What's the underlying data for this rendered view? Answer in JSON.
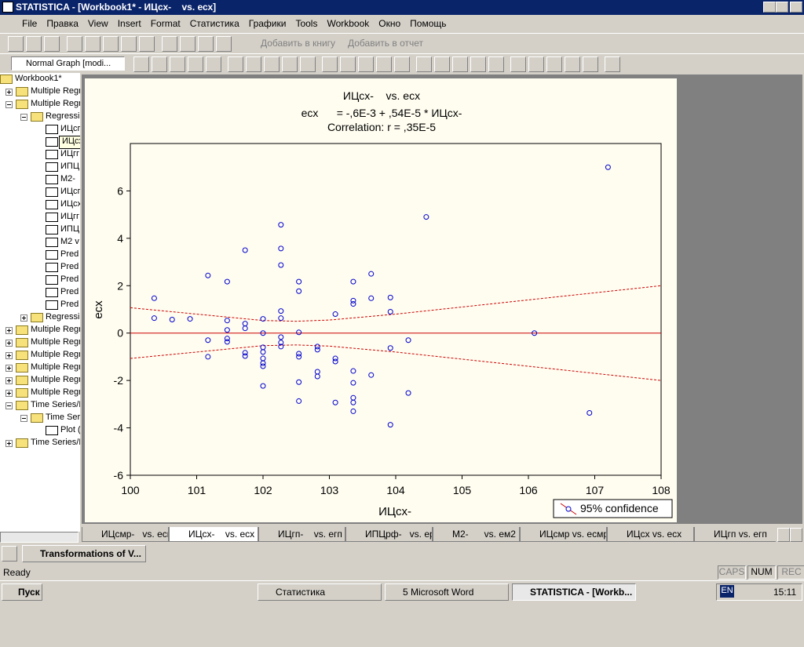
{
  "window": {
    "title": "STATISTICA - [Workbook1* - ИЦсх-    vs. есх]",
    "menu": [
      "File",
      "Правка",
      "View",
      "Insert",
      "Format",
      "Статистика",
      "Графики",
      "Tools",
      "Workbook",
      "Окно",
      "Помощь"
    ],
    "toolbar": {
      "add_to_book": "Добавить в книгу",
      "add_to_report": "Добавить в отчет",
      "graph_style": "Normal Graph [modi..."
    },
    "tree": [
      {
        "label": "Workbook1*",
        "level": 0,
        "icon": "book"
      },
      {
        "label": "Multiple Regr",
        "level": 1,
        "icon": "folder",
        "open": false
      },
      {
        "label": "Multiple Regr",
        "level": 1,
        "icon": "folder",
        "open": true
      },
      {
        "label": "Regressi",
        "level": 2,
        "icon": "folder",
        "open": true
      },
      {
        "label": "ИЦсг",
        "level": 3,
        "icon": "graph"
      },
      {
        "label": "ИЦсх-    vs. есх",
        "level": 3,
        "icon": "graph",
        "tooltip": true
      },
      {
        "label": "ИЦгг",
        "level": 3,
        "icon": "graph"
      },
      {
        "label": "ИПЦ",
        "level": 3,
        "icon": "graph"
      },
      {
        "label": "М2-",
        "level": 3,
        "icon": "graph"
      },
      {
        "label": "ИЦсг",
        "level": 3,
        "icon": "graph"
      },
      {
        "label": "ИЦсх",
        "level": 3,
        "icon": "graph"
      },
      {
        "label": "ИЦгг",
        "level": 3,
        "icon": "graph"
      },
      {
        "label": "ИПЦ",
        "level": 3,
        "icon": "graph"
      },
      {
        "label": "М2 v",
        "level": 3,
        "icon": "graph"
      },
      {
        "label": "Pred",
        "level": 3,
        "icon": "graph"
      },
      {
        "label": "Pred",
        "level": 3,
        "icon": "graph"
      },
      {
        "label": "Pred",
        "level": 3,
        "icon": "graph"
      },
      {
        "label": "Pred",
        "level": 3,
        "icon": "graph"
      },
      {
        "label": "Pred",
        "level": 3,
        "icon": "graph"
      },
      {
        "label": "Regressi",
        "level": 2,
        "icon": "folder",
        "open": false
      },
      {
        "label": "Multiple Regr",
        "level": 1,
        "icon": "folder",
        "open": false
      },
      {
        "label": "Multiple Regr",
        "level": 1,
        "icon": "folder",
        "open": false
      },
      {
        "label": "Multiple Regr",
        "level": 1,
        "icon": "folder",
        "open": false
      },
      {
        "label": "Multiple Regr",
        "level": 1,
        "icon": "folder",
        "open": false
      },
      {
        "label": "Multiple Regr",
        "level": 1,
        "icon": "folder",
        "open": false
      },
      {
        "label": "Multiple Regr",
        "level": 1,
        "icon": "folder",
        "open": false
      },
      {
        "label": "Time Series/F",
        "level": 1,
        "icon": "folder",
        "open": true
      },
      {
        "label": "Time Ser",
        "level": 2,
        "icon": "folder",
        "open": true
      },
      {
        "label": "Plot (",
        "level": 3,
        "icon": "graph"
      },
      {
        "label": "Time Series/F",
        "level": 1,
        "icon": "folder",
        "open": false
      }
    ],
    "tabs": [
      "ИЦсмр-   vs. есмр",
      "ИЦсх-    vs. есх",
      "ИЦгп-    vs. егп",
      "ИПЦрф-   vs. ерф",
      "М2-      vs. ем2",
      "ИЦсмр vs. есмр",
      "ИЦсх vs. есх",
      "ИЦгп vs. егп"
    ],
    "active_tab": 1,
    "minimized_window": "Transformations of V...",
    "status": {
      "text": "Ready",
      "indicators": [
        "CAPS",
        "NUM",
        "REC"
      ]
    },
    "taskbar": {
      "start": "Пуск",
      "tasks": [
        "Статистика",
        "5 Microsoft Word",
        "STATISTICA - [Workb..."
      ],
      "language": "EN",
      "clock": "15:11"
    }
  },
  "chart_data": {
    "type": "scatter",
    "title": "ИЦсх-    vs. есх",
    "subtitle": "есх      = -,6E-3 + ,54E-5 * ИЦсх-",
    "annotation": "Correlation: r = ,35E-5",
    "x_label": "ИЦсх-",
    "y_label": "есх",
    "xlim": [
      100,
      108
    ],
    "xticks": [
      100,
      101,
      102,
      103,
      104,
      105,
      106,
      107,
      108
    ],
    "ylim": [
      -6,
      8
    ],
    "yticks": [
      -6,
      -4,
      -2,
      0,
      2,
      4,
      6
    ],
    "legend": "95% confidence",
    "series": [
      {
        "color": "#0000cc",
        "x": [
          100.36,
          100.36,
          100.63,
          100.9,
          101.17,
          101.17,
          101.17,
          101.46,
          101.46,
          101.46,
          101.46,
          101.46,
          101.73,
          101.73,
          101.73,
          101.73,
          101.73,
          102,
          102,
          102,
          102,
          102,
          102,
          102,
          102,
          102.27,
          102.27,
          102.27,
          102.27,
          102.27,
          102.27,
          102.27,
          102.27,
          102.54,
          102.54,
          102.54,
          102.54,
          102.54,
          102.54,
          102.54,
          102.82,
          102.82,
          102.82,
          102.82,
          103.09,
          103.09,
          103.09,
          103.09,
          103.36,
          103.36,
          103.36,
          103.36,
          103.36,
          103.36,
          103.36,
          103.36,
          103.63,
          103.63,
          103.63,
          103.92,
          103.92,
          103.92,
          103.92,
          104.19,
          104.19,
          104.46,
          106.09,
          106.92,
          107.2
        ],
        "values": [
          1.47,
          0.63,
          0.57,
          0.6,
          2.43,
          -0.3,
          -1.0,
          2.17,
          0.53,
          0.13,
          -0.23,
          -0.37,
          3.5,
          0.4,
          0.2,
          -0.83,
          -0.97,
          0.6,
          0,
          -0.6,
          -0.8,
          -1.07,
          -1.27,
          -1.4,
          -2.23,
          4.57,
          3.57,
          2.87,
          0.93,
          0.63,
          -0.17,
          -0.4,
          -0.57,
          2.17,
          1.77,
          0.03,
          -0.87,
          -1.0,
          -2.07,
          -2.87,
          -0.57,
          -0.7,
          -1.63,
          -1.83,
          0.8,
          -1.07,
          -1.2,
          -2.93,
          2.17,
          1.37,
          1.23,
          -1.6,
          -2.1,
          -2.73,
          -2.93,
          -3.3,
          1.47,
          2.5,
          -1.77,
          1.5,
          0.9,
          -0.63,
          -3.87,
          -0.3,
          -2.53,
          4.9,
          0,
          -3.37,
          7.0
        ]
      }
    ],
    "lines": [
      {
        "color": "#cc0000",
        "dashed": false,
        "x": [
          100,
          108
        ],
        "values": [
          0,
          0
        ]
      },
      {
        "color": "#cc0000",
        "dashed": true,
        "x": [
          100,
          101,
          102,
          102.5,
          103,
          104,
          105,
          106,
          107,
          108
        ],
        "values": [
          1.07,
          0.8,
          0.53,
          0.5,
          0.55,
          0.8,
          1.1,
          1.4,
          1.7,
          2.0
        ]
      },
      {
        "color": "#cc0000",
        "dashed": true,
        "x": [
          100,
          101,
          102,
          102.5,
          103,
          104,
          105,
          106,
          107,
          108
        ],
        "values": [
          -1.07,
          -0.8,
          -0.53,
          -0.5,
          -0.55,
          -0.8,
          -1.1,
          -1.4,
          -1.7,
          -2.0
        ]
      }
    ]
  }
}
